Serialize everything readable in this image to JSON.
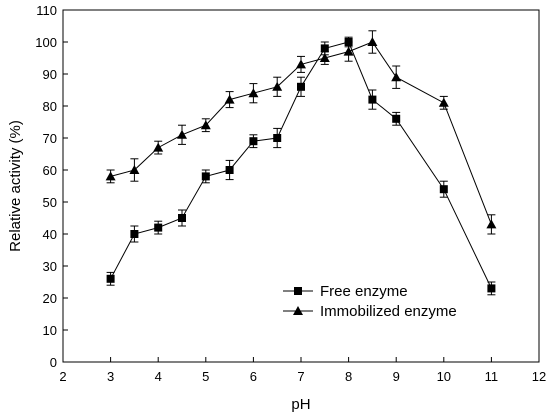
{
  "chart_data": {
    "type": "line",
    "xlabel": "pH",
    "ylabel": "Relative activity (%)",
    "xlim": [
      2,
      12
    ],
    "ylim": [
      0,
      110
    ],
    "xticks": [
      2,
      3,
      4,
      5,
      6,
      7,
      8,
      9,
      10,
      11,
      12
    ],
    "yticks": [
      0,
      10,
      20,
      30,
      40,
      50,
      60,
      70,
      80,
      90,
      100,
      110
    ],
    "legend_position": "bottom-right",
    "grid": false,
    "series": [
      {
        "name": "Free enzyme",
        "marker": "square",
        "x": [
          3,
          3.5,
          4,
          4.5,
          5,
          5.5,
          6,
          6.5,
          7,
          7.5,
          8,
          8.5,
          9,
          10,
          11
        ],
        "y": [
          26,
          40,
          42,
          45,
          58,
          60,
          69,
          70,
          86,
          98,
          100,
          82,
          76,
          54,
          23
        ],
        "err": [
          2,
          2.5,
          2,
          2.5,
          2,
          3,
          2,
          3,
          3,
          2,
          1.5,
          3,
          2,
          2.5,
          2
        ]
      },
      {
        "name": "Immobilized enzyme",
        "marker": "triangle",
        "x": [
          3,
          3.5,
          4,
          4.5,
          5,
          5.5,
          6,
          6.5,
          7,
          7.5,
          8,
          8.5,
          9,
          10,
          11
        ],
        "y": [
          58,
          60,
          67,
          71,
          74,
          82,
          84,
          86,
          93,
          95,
          97,
          100,
          89,
          81,
          43
        ],
        "err": [
          2,
          3.5,
          2,
          3,
          2,
          2.5,
          3,
          3,
          2.5,
          2,
          3,
          3.5,
          3.5,
          2,
          3
        ]
      }
    ]
  }
}
